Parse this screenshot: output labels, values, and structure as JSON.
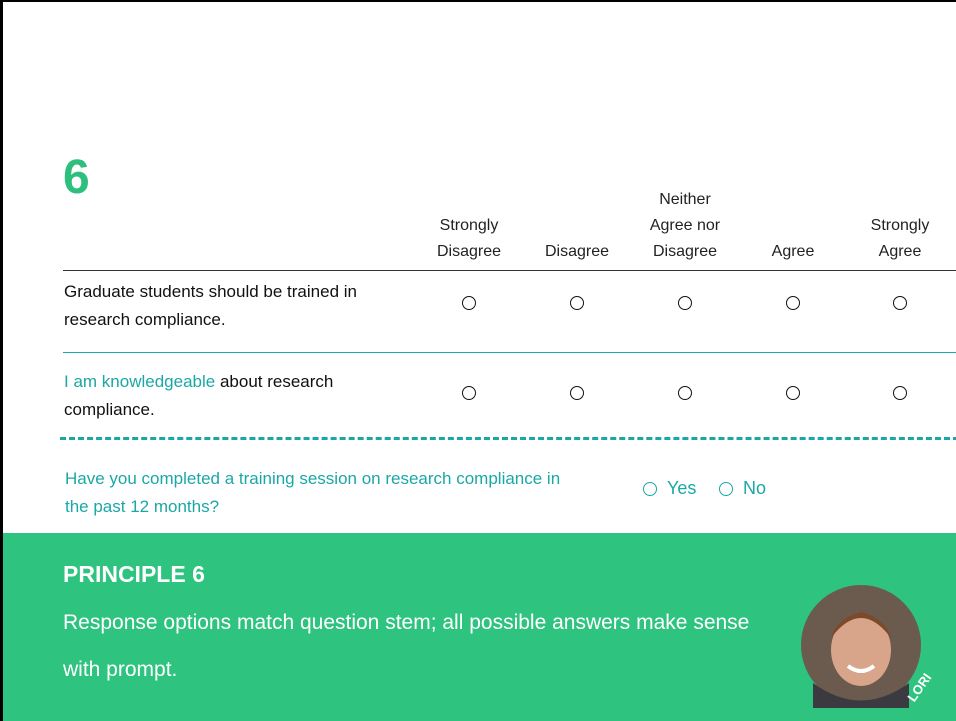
{
  "slide_number": "6",
  "scale": {
    "options": [
      "Strongly Disagree",
      "Disagree",
      "Neither Agree nor Disagree",
      "Agree",
      "Strongly Agree"
    ]
  },
  "rows": [
    {
      "text": "Graduate students should be trained in research compliance."
    },
    {
      "highlight": "I am knowledgeable",
      "text": "about research compliance."
    }
  ],
  "question": {
    "text": "Have you completed a training session on research compliance in the past 12 months?",
    "options": [
      "Yes",
      "No"
    ]
  },
  "principle": {
    "title": "PRINCIPLE 6",
    "text": "Response options match question stem; all possible answers make sense with prompt.",
    "presenter": "LORI"
  }
}
